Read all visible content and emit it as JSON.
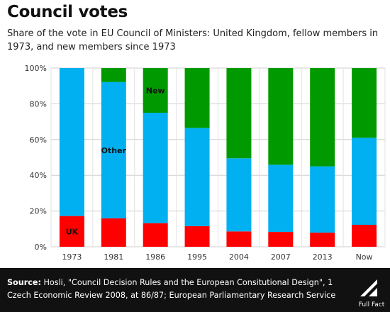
{
  "title": "Council votes",
  "subtitle": "Share of the vote in EU Council of Ministers: United Kingdom, fellow members in 1973, and new members since 1973",
  "chart_data": {
    "type": "bar",
    "stacked": true,
    "categories": [
      "1973",
      "1981",
      "1986",
      "1995",
      "2004",
      "2007",
      "2013",
      "Now"
    ],
    "series": [
      {
        "name": "UK",
        "color": "#ff0000",
        "values": [
          17.2,
          15.9,
          13.2,
          11.5,
          8.6,
          8.3,
          7.9,
          12.3
        ]
      },
      {
        "name": "Other",
        "color": "#00b0f0",
        "values": [
          82.8,
          76.3,
          61.8,
          55.0,
          40.9,
          37.6,
          37.1,
          48.7
        ]
      },
      {
        "name": "New",
        "color": "#009a00",
        "values": [
          0,
          7.8,
          25.0,
          33.5,
          50.5,
          54.1,
          55.0,
          39.0
        ]
      }
    ],
    "yticks": [
      "0%",
      "20%",
      "40%",
      "60%",
      "80%",
      "100%"
    ],
    "ylim": [
      0,
      100
    ],
    "grid": true,
    "legend": "inline labels on bars",
    "annotations": [
      {
        "text": "UK",
        "series": "UK",
        "category": "1973"
      },
      {
        "text": "Other",
        "series": "Other",
        "category": "1981"
      },
      {
        "text": "New",
        "series": "New",
        "category": "1986"
      }
    ]
  },
  "footer": {
    "source_label": "Source:",
    "source_text": "Hosli, \"Council Decision Rules and the European Consitutional Design\", 1 Czech Economic Review 2008, at 86/87; European Parliamentary Research Service",
    "logo_text": "Full Fact"
  }
}
